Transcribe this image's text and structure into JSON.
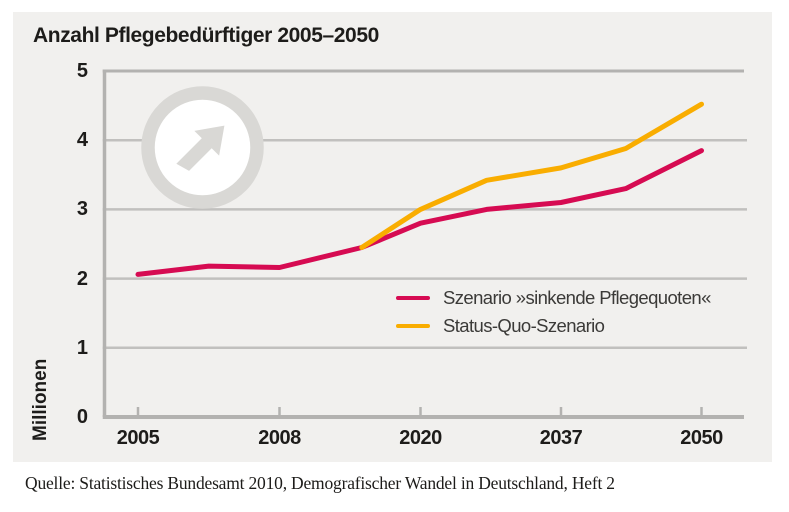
{
  "page": {
    "background": "#ffffff"
  },
  "card": {
    "background": "#f1f0ee"
  },
  "title": "Anzahl Pflegebedürftiger 2005–2050",
  "source_line": "Quelle: Statistisches Bundesamt 2010, Demografischer Wandel in Deutschland, Heft 2",
  "watermark": {
    "icon": "arrow-up-right-circle-icon",
    "color": "#d9d8d5",
    "inner_color": "#ffffff"
  },
  "chart_data": {
    "type": "line",
    "title": "Anzahl Pflegebedürftiger 2005–2050",
    "xlabel": "",
    "ylabel": "Millionen",
    "ylim": [
      0,
      5
    ],
    "yticks": [
      0,
      1,
      2,
      3,
      4,
      5
    ],
    "xticklabels": [
      "2005",
      "2008",
      "2020",
      "2037",
      "2050"
    ],
    "xtick_years": [
      2005,
      2008,
      2020,
      2037,
      2050
    ],
    "x_axis_scale": "nonlinear: tick years are equally spaced",
    "grid": "horizontal gridlines at 1,2,3,4 plus top frame at 5",
    "legend_position": "inside bottom-right",
    "colors": {
      "grid": "#c1c0be",
      "axis": "#b3b2b0",
      "tick_text": "#1d1c1a"
    },
    "series": [
      {
        "name": "Szenario »sinkende Pflegequoten«",
        "color": "#d60b52",
        "points": [
          [
            2005,
            2.06
          ],
          [
            2006.5,
            2.18
          ],
          [
            2008,
            2.16
          ],
          [
            2015,
            2.45
          ],
          [
            2020,
            2.8
          ],
          [
            2028,
            3.0
          ],
          [
            2037,
            3.1
          ],
          [
            2043,
            3.3
          ],
          [
            2050,
            3.85
          ]
        ]
      },
      {
        "name": "Status-Quo-Szenario",
        "color": "#f9ad00",
        "points": [
          [
            2015,
            2.45
          ],
          [
            2020,
            3.0
          ],
          [
            2028,
            3.42
          ],
          [
            2037,
            3.6
          ],
          [
            2043,
            3.88
          ],
          [
            2050,
            4.52
          ]
        ]
      }
    ]
  }
}
